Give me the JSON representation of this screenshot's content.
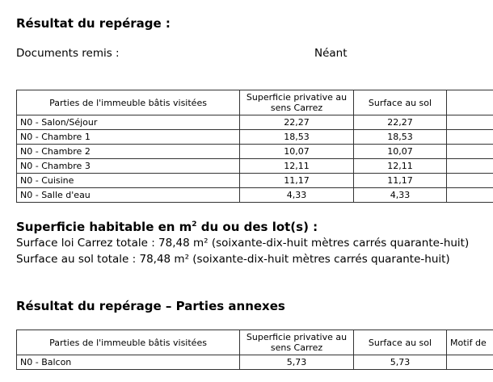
{
  "section1": {
    "title": "Résultat du repérage :",
    "documents_label": "Documents remis :",
    "documents_value": "Néant"
  },
  "table1": {
    "headers": [
      "Parties de l'immeuble bâtis visitées",
      "Superficie privative au sens Carrez",
      "Surface au sol",
      ""
    ],
    "rows": [
      [
        "N0 - Salon/Séjour",
        "22,27",
        "22,27"
      ],
      [
        "N0 - Chambre 1",
        "18,53",
        "18,53"
      ],
      [
        "N0 - Chambre 2",
        "10,07",
        "10,07"
      ],
      [
        "N0 - Chambre 3",
        "12,11",
        "12,11"
      ],
      [
        "N0 - Cuisine",
        "11,17",
        "11,17"
      ],
      [
        "N0 - Salle d'eau",
        "4,33",
        "4,33"
      ]
    ]
  },
  "section2": {
    "title_main": "Superficie habitable en m",
    "title_sup": "2",
    "title_rest": " du ou des lot(s) :",
    "line1": "Surface loi Carrez totale : 78,48 m² (soixante-dix-huit mètres carrés quarante-huit)",
    "line2": "Surface au sol totale : 78,48 m² (soixante-dix-huit mètres carrés quarante-huit)"
  },
  "section3": {
    "title": "Résultat du repérage – Parties annexes"
  },
  "table2": {
    "headers": [
      "Parties de l'immeuble bâtis visitées",
      "Superficie privative au sens Carrez",
      "Surface au sol",
      "Motif de"
    ],
    "rows": [
      [
        "N0 - Balcon",
        "5,73",
        "5,73",
        ""
      ]
    ]
  }
}
